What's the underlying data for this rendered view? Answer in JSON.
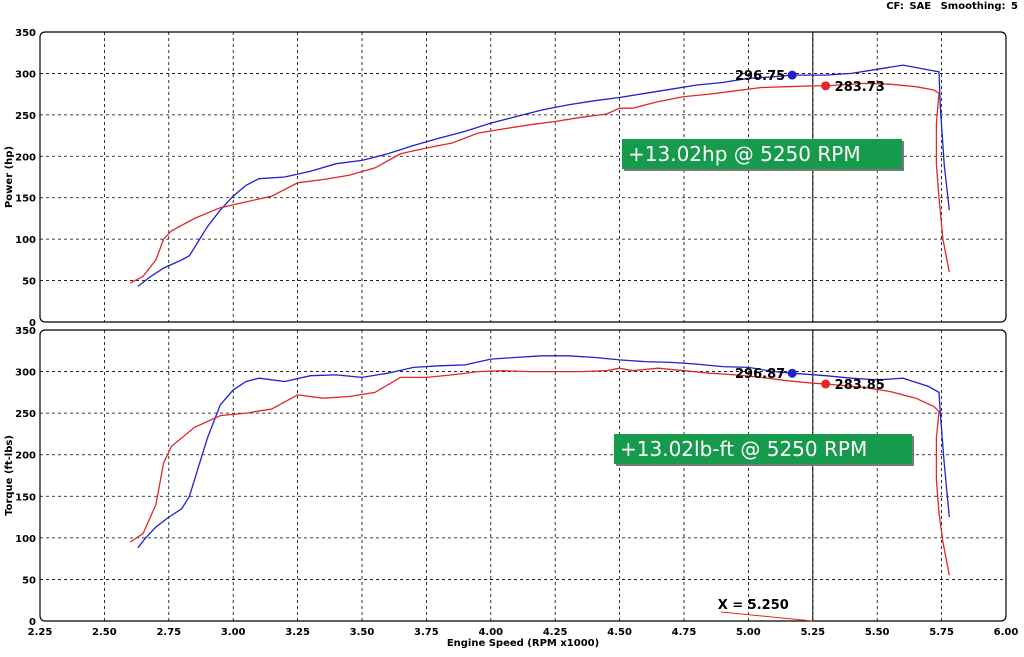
{
  "header": {
    "cf_label": "CF:",
    "cf_value": "SAE",
    "smoothing_label": "Smoothing:",
    "smoothing_value": "5"
  },
  "colors": {
    "run_blue": "#2020d0",
    "run_red": "#e02828",
    "annotation_green": "#169a4c",
    "cursor": "#000000"
  },
  "chart_data": [
    {
      "type": "line",
      "ylabel": "Power (hp)",
      "ylim": [
        0,
        350
      ],
      "yticks": [
        0,
        50,
        100,
        150,
        200,
        250,
        300,
        350
      ],
      "xlim": [
        2.25,
        6.0
      ],
      "xticks": [
        "2.25",
        "2.50",
        "2.75",
        "3.00",
        "3.25",
        "3.50",
        "3.75",
        "4.00",
        "4.25",
        "4.50",
        "4.75",
        "5.00",
        "5.25",
        "5.50",
        "5.75",
        "6.00"
      ],
      "grid": true,
      "cursor_x": 5.25,
      "annotation": "+13.02hp @ 5250 RPM",
      "markers": [
        {
          "series": "blue",
          "x": 5.17,
          "y": 298,
          "label": "296.75"
        },
        {
          "series": "red",
          "x": 5.3,
          "y": 285,
          "label": "283.73"
        }
      ],
      "series": [
        {
          "color": "blue",
          "points": [
            [
              2.63,
              43
            ],
            [
              2.68,
              55
            ],
            [
              2.73,
              65
            ],
            [
              2.8,
              75
            ],
            [
              2.83,
              80
            ],
            [
              2.87,
              100
            ],
            [
              2.9,
              115
            ],
            [
              2.95,
              135
            ],
            [
              3.0,
              152
            ],
            [
              3.05,
              165
            ],
            [
              3.1,
              173
            ],
            [
              3.2,
              175
            ],
            [
              3.3,
              182
            ],
            [
              3.4,
              191
            ],
            [
              3.5,
              195
            ],
            [
              3.6,
              203
            ],
            [
              3.7,
              213
            ],
            [
              3.8,
              222
            ],
            [
              3.9,
              230
            ],
            [
              4.0,
              240
            ],
            [
              4.1,
              248
            ],
            [
              4.2,
              256
            ],
            [
              4.3,
              262
            ],
            [
              4.4,
              267
            ],
            [
              4.5,
              271
            ],
            [
              4.6,
              276
            ],
            [
              4.7,
              281
            ],
            [
              4.8,
              286
            ],
            [
              4.9,
              289
            ],
            [
              5.0,
              294
            ],
            [
              5.1,
              296
            ],
            [
              5.17,
              298
            ],
            [
              5.3,
              298
            ],
            [
              5.4,
              300
            ],
            [
              5.5,
              305
            ],
            [
              5.6,
              310
            ],
            [
              5.67,
              306
            ],
            [
              5.74,
              302
            ],
            [
              5.745,
              260
            ],
            [
              5.76,
              190
            ],
            [
              5.78,
              135
            ]
          ]
        },
        {
          "color": "red",
          "points": [
            [
              2.6,
              47
            ],
            [
              2.65,
              55
            ],
            [
              2.7,
              75
            ],
            [
              2.73,
              100
            ],
            [
              2.76,
              110
            ],
            [
              2.85,
              125
            ],
            [
              2.95,
              138
            ],
            [
              3.05,
              145
            ],
            [
              3.15,
              152
            ],
            [
              3.25,
              168
            ],
            [
              3.35,
              172
            ],
            [
              3.45,
              177
            ],
            [
              3.55,
              186
            ],
            [
              3.65,
              203
            ],
            [
              3.75,
              210
            ],
            [
              3.85,
              216
            ],
            [
              3.95,
              228
            ],
            [
              4.05,
              233
            ],
            [
              4.15,
              238
            ],
            [
              4.25,
              242
            ],
            [
              4.35,
              247
            ],
            [
              4.45,
              251
            ],
            [
              4.5,
              258
            ],
            [
              4.55,
              258
            ],
            [
              4.65,
              266
            ],
            [
              4.75,
              272
            ],
            [
              4.85,
              275
            ],
            [
              4.95,
              279
            ],
            [
              5.05,
              283
            ],
            [
              5.15,
              284
            ],
            [
              5.25,
              285
            ],
            [
              5.3,
              285
            ],
            [
              5.45,
              288
            ],
            [
              5.55,
              287
            ],
            [
              5.65,
              284
            ],
            [
              5.72,
              280
            ],
            [
              5.74,
              276
            ],
            [
              5.73,
              240
            ],
            [
              5.73,
              190
            ],
            [
              5.74,
              150
            ],
            [
              5.755,
              100
            ],
            [
              5.78,
              60
            ]
          ]
        }
      ]
    },
    {
      "type": "line",
      "ylabel": "Torque (ft-lbs)",
      "ylim": [
        0,
        350
      ],
      "yticks": [
        0,
        50,
        100,
        150,
        200,
        250,
        300,
        350
      ],
      "xlim": [
        2.25,
        6.0
      ],
      "xticks": [
        "2.25",
        "2.50",
        "2.75",
        "3.00",
        "3.25",
        "3.50",
        "3.75",
        "4.00",
        "4.25",
        "4.50",
        "4.75",
        "5.00",
        "5.25",
        "5.50",
        "5.75",
        "6.00"
      ],
      "xlabel": "Engine Speed (RPM x1000)",
      "grid": true,
      "cursor_x": 5.25,
      "cursor_label": "X = 5.250",
      "annotation": "+13.02lb-ft @ 5250 RPM",
      "markers": [
        {
          "series": "blue",
          "x": 5.17,
          "y": 298,
          "label": "296.87"
        },
        {
          "series": "red",
          "x": 5.3,
          "y": 285,
          "label": "283.85"
        }
      ],
      "series": [
        {
          "color": "blue",
          "points": [
            [
              2.63,
              88
            ],
            [
              2.66,
              100
            ],
            [
              2.7,
              113
            ],
            [
              2.75,
              125
            ],
            [
              2.8,
              135
            ],
            [
              2.83,
              150
            ],
            [
              2.86,
              180
            ],
            [
              2.9,
              220
            ],
            [
              2.95,
              260
            ],
            [
              3.0,
              278
            ],
            [
              3.05,
              288
            ],
            [
              3.1,
              292
            ],
            [
              3.2,
              288
            ],
            [
              3.3,
              295
            ],
            [
              3.4,
              296
            ],
            [
              3.5,
              293
            ],
            [
              3.6,
              298
            ],
            [
              3.7,
              305
            ],
            [
              3.8,
              307
            ],
            [
              3.9,
              308
            ],
            [
              4.0,
              315
            ],
            [
              4.1,
              317
            ],
            [
              4.2,
              319
            ],
            [
              4.3,
              319
            ],
            [
              4.4,
              317
            ],
            [
              4.5,
              314
            ],
            [
              4.6,
              312
            ],
            [
              4.7,
              311
            ],
            [
              4.8,
              309
            ],
            [
              4.9,
              306
            ],
            [
              5.0,
              305
            ],
            [
              5.1,
              300
            ],
            [
              5.17,
              298
            ],
            [
              5.3,
              295
            ],
            [
              5.4,
              292
            ],
            [
              5.5,
              290
            ],
            [
              5.6,
              292
            ],
            [
              5.7,
              282
            ],
            [
              5.74,
              275
            ],
            [
              5.745,
              250
            ],
            [
              5.76,
              190
            ],
            [
              5.78,
              125
            ]
          ]
        },
        {
          "color": "red",
          "points": [
            [
              2.6,
              95
            ],
            [
              2.65,
              105
            ],
            [
              2.7,
              140
            ],
            [
              2.73,
              190
            ],
            [
              2.76,
              210
            ],
            [
              2.85,
              233
            ],
            [
              2.95,
              247
            ],
            [
              3.05,
              250
            ],
            [
              3.15,
              255
            ],
            [
              3.25,
              272
            ],
            [
              3.35,
              268
            ],
            [
              3.45,
              270
            ],
            [
              3.55,
              275
            ],
            [
              3.65,
              293
            ],
            [
              3.75,
              293
            ],
            [
              3.85,
              296
            ],
            [
              3.95,
              300
            ],
            [
              4.05,
              301
            ],
            [
              4.15,
              300
            ],
            [
              4.25,
              300
            ],
            [
              4.35,
              300
            ],
            [
              4.45,
              301
            ],
            [
              4.5,
              304
            ],
            [
              4.55,
              301
            ],
            [
              4.65,
              304
            ],
            [
              4.75,
              301
            ],
            [
              4.85,
              298
            ],
            [
              4.95,
              296
            ],
            [
              5.05,
              293
            ],
            [
              5.15,
              289
            ],
            [
              5.25,
              286
            ],
            [
              5.3,
              285
            ],
            [
              5.45,
              281
            ],
            [
              5.55,
              276
            ],
            [
              5.65,
              268
            ],
            [
              5.72,
              258
            ],
            [
              5.74,
              252
            ],
            [
              5.73,
              220
            ],
            [
              5.73,
              170
            ],
            [
              5.74,
              130
            ],
            [
              5.755,
              95
            ],
            [
              5.78,
              55
            ]
          ]
        }
      ]
    }
  ]
}
